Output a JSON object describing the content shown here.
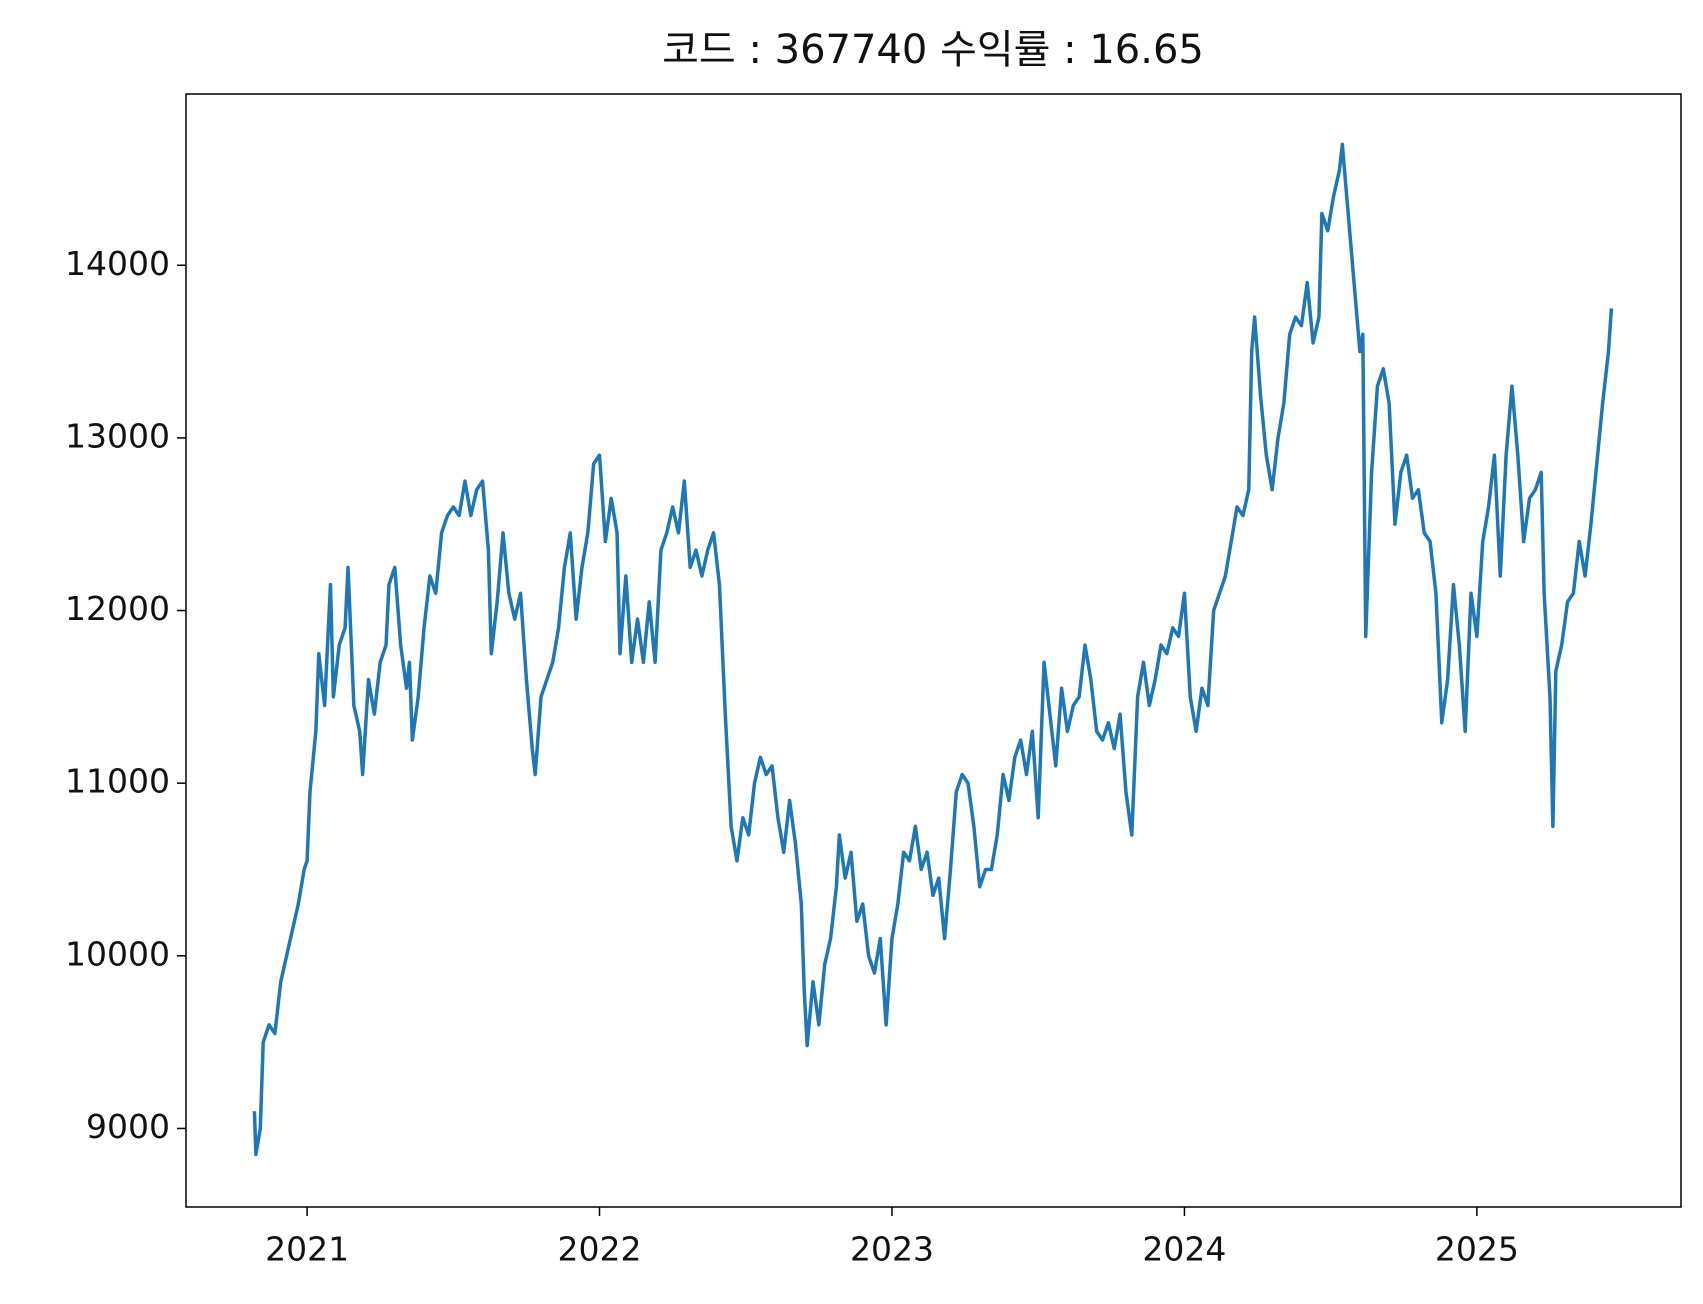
{
  "chart_data": {
    "type": "line",
    "title": "코드 : 367740 수익률 : 16.65",
    "color": "#1f77b4",
    "x": [
      2020.82,
      2020.825,
      2020.84,
      2020.85,
      2020.87,
      2020.89,
      2020.91,
      2020.93,
      2020.95,
      2020.97,
      2020.99,
      2021.0,
      2021.01,
      2021.03,
      2021.04,
      2021.06,
      2021.08,
      2021.09,
      2021.11,
      2021.13,
      2021.14,
      2021.16,
      2021.18,
      2021.19,
      2021.21,
      2021.23,
      2021.25,
      2021.27,
      2021.28,
      2021.3,
      2021.32,
      2021.34,
      2021.35,
      2021.36,
      2021.38,
      2021.4,
      2021.42,
      2021.44,
      2021.46,
      2021.48,
      2021.5,
      2021.52,
      2021.54,
      2021.56,
      2021.58,
      2021.6,
      2021.62,
      2021.63,
      2021.65,
      2021.67,
      2021.69,
      2021.71,
      2021.73,
      2021.75,
      2021.77,
      2021.78,
      2021.8,
      2021.82,
      2021.84,
      2021.86,
      2021.88,
      2021.9,
      2021.92,
      2021.94,
      2021.96,
      2021.98,
      2022.0,
      2022.02,
      2022.04,
      2022.06,
      2022.07,
      2022.09,
      2022.11,
      2022.13,
      2022.15,
      2022.17,
      2022.19,
      2022.21,
      2022.23,
      2022.25,
      2022.27,
      2022.29,
      2022.31,
      2022.33,
      2022.35,
      2022.37,
      2022.39,
      2022.41,
      2022.43,
      2022.45,
      2022.47,
      2022.49,
      2022.51,
      2022.53,
      2022.55,
      2022.57,
      2022.59,
      2022.61,
      2022.63,
      2022.65,
      2022.67,
      2022.69,
      2022.7,
      2022.71,
      2022.73,
      2022.75,
      2022.77,
      2022.79,
      2022.81,
      2022.82,
      2022.84,
      2022.86,
      2022.88,
      2022.9,
      2022.92,
      2022.94,
      2022.96,
      2022.98,
      2023.0,
      2023.02,
      2023.04,
      2023.06,
      2023.08,
      2023.1,
      2023.12,
      2023.14,
      2023.16,
      2023.18,
      2023.2,
      2023.22,
      2023.24,
      2023.26,
      2023.28,
      2023.3,
      2023.32,
      2023.34,
      2023.36,
      2023.38,
      2023.4,
      2023.42,
      2023.44,
      2023.46,
      2023.48,
      2023.5,
      2023.52,
      2023.54,
      2023.56,
      2023.58,
      2023.6,
      2023.62,
      2023.64,
      2023.66,
      2023.68,
      2023.7,
      2023.72,
      2023.74,
      2023.76,
      2023.78,
      2023.8,
      2023.82,
      2023.84,
      2023.86,
      2023.88,
      2023.9,
      2023.92,
      2023.94,
      2023.96,
      2023.98,
      2024.0,
      2024.02,
      2024.04,
      2024.06,
      2024.08,
      2024.1,
      2024.12,
      2024.14,
      2024.16,
      2024.18,
      2024.2,
      2024.22,
      2024.23,
      2024.24,
      2024.26,
      2024.28,
      2024.3,
      2024.32,
      2024.34,
      2024.36,
      2024.38,
      2024.4,
      2024.42,
      2024.44,
      2024.46,
      2024.47,
      2024.49,
      2024.51,
      2024.53,
      2024.54,
      2024.56,
      2024.58,
      2024.6,
      2024.61,
      2024.62,
      2024.64,
      2024.66,
      2024.68,
      2024.7,
      2024.72,
      2024.74,
      2024.76,
      2024.78,
      2024.8,
      2024.82,
      2024.84,
      2024.86,
      2024.88,
      2024.9,
      2024.92,
      2024.94,
      2024.96,
      2024.98,
      2025.0,
      2025.02,
      2025.04,
      2025.06,
      2025.08,
      2025.1,
      2025.12,
      2025.14,
      2025.16,
      2025.18,
      2025.2,
      2025.22,
      2025.23,
      2025.25,
      2025.26,
      2025.27,
      2025.29,
      2025.31,
      2025.33,
      2025.35,
      2025.37,
      2025.39,
      2025.41,
      2025.43,
      2025.45,
      2025.46
    ],
    "values": [
      9100,
      8850,
      9000,
      9500,
      9600,
      9550,
      9850,
      10000,
      10150,
      10300,
      10500,
      10550,
      10950,
      11300,
      11750,
      11450,
      12150,
      11500,
      11800,
      11900,
      12250,
      11450,
      11300,
      11050,
      11600,
      11400,
      11700,
      11800,
      12150,
      12250,
      11800,
      11550,
      11700,
      11250,
      11500,
      11900,
      12200,
      12100,
      12450,
      12550,
      12600,
      12550,
      12750,
      12550,
      12700,
      12750,
      12350,
      11750,
      12050,
      12450,
      12100,
      11950,
      12100,
      11600,
      11200,
      11050,
      11500,
      11600,
      11700,
      11900,
      12250,
      12450,
      11950,
      12250,
      12450,
      12850,
      12900,
      12400,
      12650,
      12450,
      11750,
      12200,
      11700,
      11950,
      11700,
      12050,
      11700,
      12350,
      12450,
      12600,
      12450,
      12750,
      12250,
      12350,
      12200,
      12350,
      12450,
      12150,
      11400,
      10750,
      10550,
      10800,
      10700,
      11000,
      11150,
      11050,
      11100,
      10800,
      10600,
      10900,
      10650,
      10300,
      9800,
      9480,
      9850,
      9600,
      9950,
      10100,
      10400,
      10700,
      10450,
      10600,
      10200,
      10300,
      10000,
      9900,
      10100,
      9600,
      10100,
      10300,
      10600,
      10550,
      10750,
      10500,
      10600,
      10350,
      10450,
      10100,
      10500,
      10950,
      11050,
      11000,
      10750,
      10400,
      10500,
      10500,
      10700,
      11050,
      10900,
      11150,
      11250,
      11050,
      11300,
      10800,
      11700,
      11400,
      11100,
      11550,
      11300,
      11450,
      11500,
      11800,
      11600,
      11300,
      11250,
      11350,
      11200,
      11400,
      10950,
      10700,
      11500,
      11700,
      11450,
      11600,
      11800,
      11750,
      11900,
      11850,
      12100,
      11500,
      11300,
      11550,
      11450,
      12000,
      12100,
      12200,
      12400,
      12600,
      12550,
      12700,
      13500,
      13700,
      13250,
      12900,
      12700,
      13000,
      13200,
      13600,
      13700,
      13650,
      13900,
      13550,
      13700,
      14300,
      14200,
      14400,
      14550,
      14700,
      14300,
      13900,
      13500,
      13600,
      11850,
      12800,
      13300,
      13400,
      13200,
      12500,
      12800,
      12900,
      12650,
      12700,
      12450,
      12400,
      12100,
      11350,
      11600,
      12150,
      11800,
      11300,
      12100,
      11850,
      12400,
      12600,
      12900,
      12200,
      12900,
      13300,
      12900,
      12400,
      12650,
      12700,
      12800,
      12100,
      11500,
      10750,
      11650,
      11800,
      12050,
      12100,
      12400,
      12200,
      12500,
      12850,
      13200,
      13500,
      13750
    ],
    "xlim": [
      2020.586,
      2025.698
    ],
    "xticks": [
      2021,
      2022,
      2023,
      2024,
      2025
    ],
    "ylim": [
      8545,
      14992
    ],
    "yticks": [
      9000,
      10000,
      11000,
      12000,
      13000,
      14000
    ]
  }
}
